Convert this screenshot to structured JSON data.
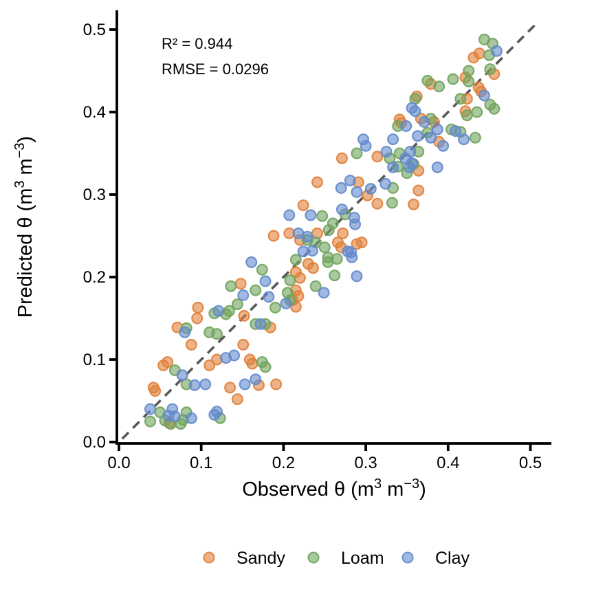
{
  "figure": {
    "background": "#ffffff",
    "annotation": {
      "lines": [
        "R² = 0.944",
        "RMSE = 0.0296"
      ],
      "color": "#3f3f3f"
    },
    "x_axis": {
      "title_parts": [
        {
          "text": "Observed θ (m",
          "sup": false
        },
        {
          "text": "3",
          "sup": true
        },
        {
          "text": " m",
          "sup": false
        },
        {
          "text": "−3",
          "sup": true
        },
        {
          "text": ")",
          "sup": false
        }
      ],
      "tick_values": [
        0,
        0.1,
        0.2,
        0.3,
        0.4,
        0.5
      ],
      "tick_labels": [
        "0.0",
        "0.1",
        "0.2",
        "0.3",
        "0.4",
        "0.5"
      ]
    },
    "y_axis": {
      "title_parts": [
        {
          "text": "Predicted θ (m",
          "sup": false
        },
        {
          "text": "3",
          "sup": true
        },
        {
          "text": " m",
          "sup": false
        },
        {
          "text": "−3",
          "sup": true
        },
        {
          "text": ")",
          "sup": false
        }
      ],
      "tick_values": [
        0,
        0.1,
        0.2,
        0.3,
        0.4,
        0.5
      ],
      "tick_labels": [
        "0.0",
        "0.1",
        "0.2",
        "0.3",
        "0.4",
        "0.5"
      ]
    },
    "identity_line": {
      "color": "#595959",
      "from": 0.004,
      "to": 0.508
    },
    "legend": {
      "labels": [
        "Sandy",
        "Loam",
        "Clay"
      ]
    }
  },
  "chart_data": {
    "type": "scatter",
    "title": "",
    "xlabel": "Observed θ (m³ m⁻³)",
    "ylabel": "Predicted θ (m³ m⁻³)",
    "xlim": [
      0,
      0.52
    ],
    "ylim": [
      0,
      0.52
    ],
    "x_ticks": [
      0,
      0.1,
      0.2,
      0.3,
      0.4,
      0.5
    ],
    "y_ticks": [
      0,
      0.1,
      0.2,
      0.3,
      0.4,
      0.5
    ],
    "grid": false,
    "legend_position": "bottom",
    "annotations": [
      "R² = 0.944",
      "RMSE = 0.0296"
    ],
    "identity_line": true,
    "series": [
      {
        "name": "Sandy",
        "color": "#e0803a",
        "points": [
          [
            0.042,
            0.066
          ],
          [
            0.044,
            0.062
          ],
          [
            0.054,
            0.093
          ],
          [
            0.059,
            0.097
          ],
          [
            0.061,
            0.023
          ],
          [
            0.071,
            0.139
          ],
          [
            0.088,
            0.118
          ],
          [
            0.095,
            0.15
          ],
          [
            0.096,
            0.163
          ],
          [
            0.11,
            0.093
          ],
          [
            0.119,
            0.1
          ],
          [
            0.135,
            0.066
          ],
          [
            0.144,
            0.052
          ],
          [
            0.148,
            0.192
          ],
          [
            0.151,
            0.118
          ],
          [
            0.152,
            0.153
          ],
          [
            0.159,
            0.1
          ],
          [
            0.162,
            0.095
          ],
          [
            0.17,
            0.069
          ],
          [
            0.184,
            0.139
          ],
          [
            0.188,
            0.25
          ],
          [
            0.191,
            0.07
          ],
          [
            0.207,
            0.253
          ],
          [
            0.211,
            0.172
          ],
          [
            0.215,
            0.164
          ],
          [
            0.215,
            0.184
          ],
          [
            0.215,
            0.206
          ],
          [
            0.218,
            0.177
          ],
          [
            0.22,
            0.199
          ],
          [
            0.22,
            0.245
          ],
          [
            0.224,
            0.287
          ],
          [
            0.23,
            0.216
          ],
          [
            0.236,
            0.211
          ],
          [
            0.241,
            0.253
          ],
          [
            0.241,
            0.315
          ],
          [
            0.266,
            0.242
          ],
          [
            0.27,
            0.236
          ],
          [
            0.271,
            0.344
          ],
          [
            0.272,
            0.253
          ],
          [
            0.289,
            0.24
          ],
          [
            0.291,
            0.315
          ],
          [
            0.295,
            0.242
          ],
          [
            0.302,
            0.299
          ],
          [
            0.314,
            0.289
          ],
          [
            0.314,
            0.346
          ],
          [
            0.341,
            0.391
          ],
          [
            0.343,
            0.387
          ],
          [
            0.358,
            0.288
          ],
          [
            0.362,
            0.419
          ],
          [
            0.364,
            0.305
          ],
          [
            0.364,
            0.329
          ],
          [
            0.367,
            0.392
          ],
          [
            0.379,
            0.434
          ],
          [
            0.383,
            0.388
          ],
          [
            0.389,
            0.364
          ],
          [
            0.421,
            0.401
          ],
          [
            0.421,
            0.442
          ],
          [
            0.423,
            0.416
          ],
          [
            0.431,
            0.466
          ],
          [
            0.437,
            0.43
          ],
          [
            0.438,
            0.471
          ],
          [
            0.44,
            0.425
          ],
          [
            0.456,
            0.446
          ]
        ]
      },
      {
        "name": "Loam",
        "color": "#6fa35b",
        "points": [
          [
            0.038,
            0.025
          ],
          [
            0.05,
            0.036
          ],
          [
            0.056,
            0.026
          ],
          [
            0.063,
            0.022
          ],
          [
            0.068,
            0.087
          ],
          [
            0.075,
            0.022
          ],
          [
            0.078,
            0.027
          ],
          [
            0.082,
            0.036
          ],
          [
            0.082,
            0.07
          ],
          [
            0.082,
            0.138
          ],
          [
            0.11,
            0.133
          ],
          [
            0.116,
            0.156
          ],
          [
            0.119,
            0.131
          ],
          [
            0.123,
            0.029
          ],
          [
            0.13,
            0.155
          ],
          [
            0.134,
            0.159
          ],
          [
            0.136,
            0.189
          ],
          [
            0.144,
            0.167
          ],
          [
            0.166,
            0.143
          ],
          [
            0.166,
            0.184
          ],
          [
            0.174,
            0.097
          ],
          [
            0.174,
            0.209
          ],
          [
            0.178,
            0.091
          ],
          [
            0.178,
            0.143
          ],
          [
            0.19,
            0.163
          ],
          [
            0.205,
            0.181
          ],
          [
            0.208,
            0.172
          ],
          [
            0.208,
            0.196
          ],
          [
            0.215,
            0.221
          ],
          [
            0.229,
            0.245
          ],
          [
            0.239,
            0.189
          ],
          [
            0.239,
            0.242
          ],
          [
            0.247,
            0.274
          ],
          [
            0.25,
            0.236
          ],
          [
            0.254,
            0.218
          ],
          [
            0.254,
            0.224
          ],
          [
            0.255,
            0.257
          ],
          [
            0.26,
            0.265
          ],
          [
            0.262,
            0.202
          ],
          [
            0.265,
            0.222
          ],
          [
            0.275,
            0.276
          ],
          [
            0.289,
            0.35
          ],
          [
            0.329,
            0.344
          ],
          [
            0.332,
            0.29
          ],
          [
            0.333,
            0.308
          ],
          [
            0.339,
            0.334
          ],
          [
            0.339,
            0.383
          ],
          [
            0.341,
            0.35
          ],
          [
            0.35,
            0.326
          ],
          [
            0.358,
            0.337
          ],
          [
            0.36,
            0.416
          ],
          [
            0.364,
            0.352
          ],
          [
            0.375,
            0.375
          ],
          [
            0.375,
            0.438
          ],
          [
            0.379,
            0.392
          ],
          [
            0.389,
            0.431
          ],
          [
            0.404,
            0.379
          ],
          [
            0.406,
            0.44
          ],
          [
            0.415,
            0.376
          ],
          [
            0.415,
            0.416
          ],
          [
            0.423,
            0.396
          ],
          [
            0.425,
            0.437
          ],
          [
            0.425,
            0.45
          ],
          [
            0.433,
            0.369
          ],
          [
            0.435,
            0.4
          ],
          [
            0.444,
            0.488
          ],
          [
            0.45,
            0.469
          ],
          [
            0.451,
            0.409
          ],
          [
            0.451,
            0.452
          ],
          [
            0.454,
            0.483
          ],
          [
            0.456,
            0.404
          ]
        ]
      },
      {
        "name": "Clay",
        "color": "#6289cc",
        "points": [
          [
            0.038,
            0.04
          ],
          [
            0.06,
            0.032
          ],
          [
            0.065,
            0.04
          ],
          [
            0.068,
            0.031
          ],
          [
            0.077,
            0.081
          ],
          [
            0.08,
            0.133
          ],
          [
            0.088,
            0.029
          ],
          [
            0.092,
            0.069
          ],
          [
            0.105,
            0.07
          ],
          [
            0.116,
            0.033
          ],
          [
            0.119,
            0.037
          ],
          [
            0.121,
            0.159
          ],
          [
            0.13,
            0.102
          ],
          [
            0.14,
            0.105
          ],
          [
            0.151,
            0.178
          ],
          [
            0.153,
            0.07
          ],
          [
            0.161,
            0.218
          ],
          [
            0.166,
            0.076
          ],
          [
            0.172,
            0.143
          ],
          [
            0.178,
            0.195
          ],
          [
            0.182,
            0.176
          ],
          [
            0.203,
            0.168
          ],
          [
            0.207,
            0.275
          ],
          [
            0.218,
            0.253
          ],
          [
            0.224,
            0.231
          ],
          [
            0.229,
            0.249
          ],
          [
            0.233,
            0.275
          ],
          [
            0.235,
            0.232
          ],
          [
            0.249,
            0.181
          ],
          [
            0.27,
            0.308
          ],
          [
            0.271,
            0.282
          ],
          [
            0.278,
            0.231
          ],
          [
            0.281,
            0.317
          ],
          [
            0.282,
            0.23
          ],
          [
            0.283,
            0.224
          ],
          [
            0.286,
            0.272
          ],
          [
            0.287,
            0.264
          ],
          [
            0.289,
            0.201
          ],
          [
            0.289,
            0.303
          ],
          [
            0.297,
            0.367
          ],
          [
            0.3,
            0.359
          ],
          [
            0.306,
            0.307
          ],
          [
            0.324,
            0.313
          ],
          [
            0.325,
            0.352
          ],
          [
            0.333,
            0.333
          ],
          [
            0.333,
            0.367
          ],
          [
            0.348,
            0.344
          ],
          [
            0.349,
            0.383
          ],
          [
            0.353,
            0.333
          ],
          [
            0.354,
            0.352
          ],
          [
            0.356,
            0.338
          ],
          [
            0.356,
            0.405
          ],
          [
            0.36,
            0.401
          ],
          [
            0.363,
            0.371
          ],
          [
            0.371,
            0.388
          ],
          [
            0.379,
            0.369
          ],
          [
            0.387,
            0.333
          ],
          [
            0.387,
            0.379
          ],
          [
            0.394,
            0.359
          ],
          [
            0.409,
            0.377
          ],
          [
            0.419,
            0.367
          ],
          [
            0.444,
            0.42
          ],
          [
            0.459,
            0.474
          ]
        ]
      }
    ]
  }
}
